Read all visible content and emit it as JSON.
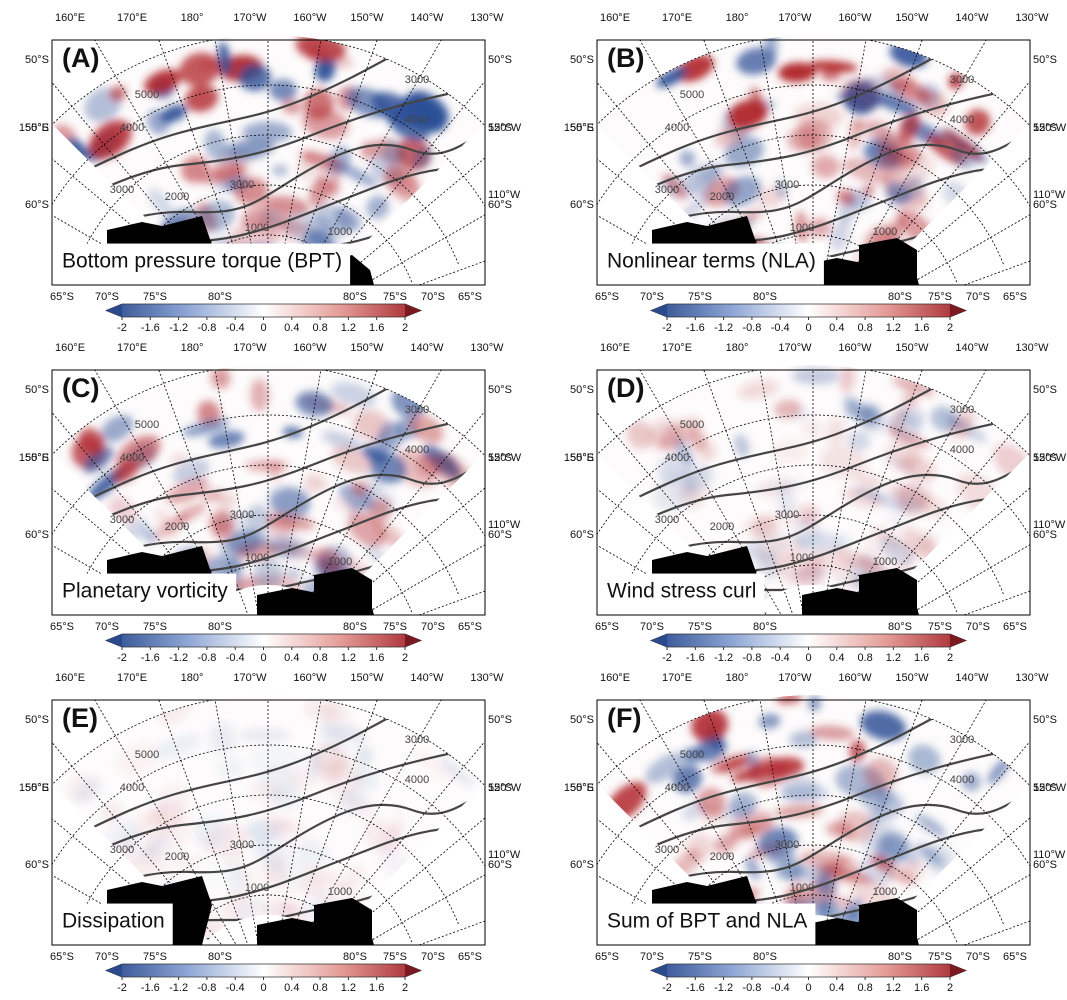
{
  "panels": [
    {
      "letter": "(A)",
      "label": "Bottom pressure torque (BPT)"
    },
    {
      "letter": "(B)",
      "label": "Nonlinear terms (NLA)"
    },
    {
      "letter": "(C)",
      "label": "Planetary vorticity"
    },
    {
      "letter": "(D)",
      "label": "Wind stress curl"
    },
    {
      "letter": "(E)",
      "label": "Dissipation"
    },
    {
      "letter": "(F)",
      "label": "Sum of BPT and NLA"
    }
  ],
  "map_labels": {
    "top": [
      "160°E",
      "170°E",
      "180°",
      "170°W",
      "160°W",
      "150°W",
      "140°W",
      "130°W"
    ],
    "bottom": [
      "65°S",
      "70°S",
      "75°S",
      "80°S",
      "80°S",
      "75°S",
      "70°S",
      "65°S"
    ],
    "left": [
      "50°S",
      "150°E",
      "55°S",
      "60°S"
    ],
    "right": [
      "50°S",
      "120°W",
      "55°S",
      "110°W",
      "60°S"
    ],
    "contours": [
      "5000",
      "4000",
      "3000",
      "2000",
      "1000"
    ]
  },
  "colorbar": {
    "range": [
      -2,
      2
    ],
    "ticks": [
      -2,
      -1.6,
      -1.2,
      -0.8,
      -0.4,
      0,
      0.4,
      0.8,
      1.2,
      1.6,
      2
    ]
  }
}
